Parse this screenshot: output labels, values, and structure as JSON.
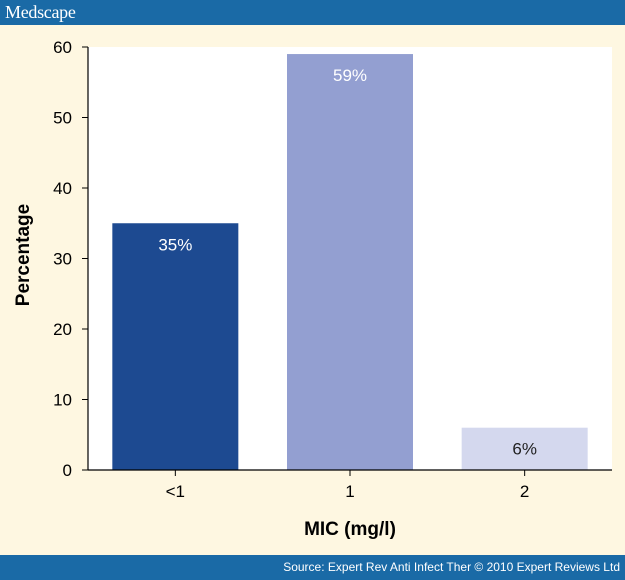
{
  "header": {
    "brand": "Medscape"
  },
  "footer": {
    "source": "Source: Expert Rev Anti Infect Ther © 2010 Expert Reviews Ltd"
  },
  "colors": {
    "background": "#fef7e1",
    "bar_band": "#1a6aa6",
    "plot_area": "#ffffff"
  },
  "chart_data": {
    "type": "bar",
    "categories": [
      "<1",
      "1",
      "2"
    ],
    "values": [
      35,
      59,
      6
    ],
    "data_labels": [
      "35%",
      "59%",
      "6%"
    ],
    "bar_colors": [
      "#1d4a91",
      "#939fd1",
      "#d4d8ee"
    ],
    "data_label_colors": [
      "#ffffff",
      "#ffffff",
      "#222222"
    ],
    "xlabel": "MIC (mg/l)",
    "ylabel": "Percentage",
    "ylim": [
      0,
      60
    ],
    "yticks": [
      0,
      10,
      20,
      30,
      40,
      50,
      60
    ],
    "grid": false,
    "legend": "none"
  }
}
